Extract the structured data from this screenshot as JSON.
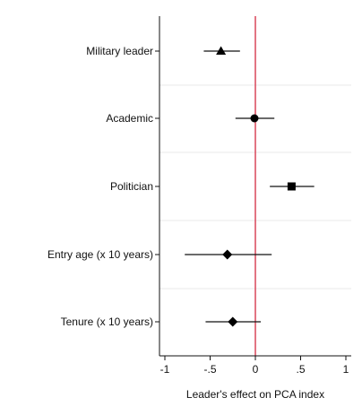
{
  "chart_data": {
    "type": "scatter",
    "title": "",
    "xlabel": "Leader's effect on PCA index",
    "ylabel": "",
    "xlim": [
      -1.05,
      1.05
    ],
    "xticks": [
      {
        "value": -1,
        "label": "-1"
      },
      {
        "value": -0.5,
        "label": "-.5"
      },
      {
        "value": 0,
        "label": "0"
      },
      {
        "value": 0.5,
        "label": ".5"
      },
      {
        "value": 1,
        "label": "1"
      }
    ],
    "reference_line": {
      "x": 0,
      "color": "#d9465a"
    },
    "grid": "horizontal separators between categories",
    "legend": "none",
    "categories": [
      {
        "label": "Military leader",
        "estimate": -0.38,
        "ci_low": -0.57,
        "ci_high": -0.17,
        "marker": "triangle"
      },
      {
        "label": "Academic",
        "estimate": -0.01,
        "ci_low": -0.22,
        "ci_high": 0.21,
        "marker": "circle"
      },
      {
        "label": "Politician",
        "estimate": 0.4,
        "ci_low": 0.16,
        "ci_high": 0.65,
        "marker": "square"
      },
      {
        "label": "Entry age (x 10 years)",
        "estimate": -0.31,
        "ci_low": -0.78,
        "ci_high": 0.18,
        "marker": "diamond"
      },
      {
        "label": "Tenure  (x 10 years)",
        "estimate": -0.25,
        "ci_low": -0.55,
        "ci_high": 0.06,
        "marker": "diamond"
      }
    ]
  }
}
